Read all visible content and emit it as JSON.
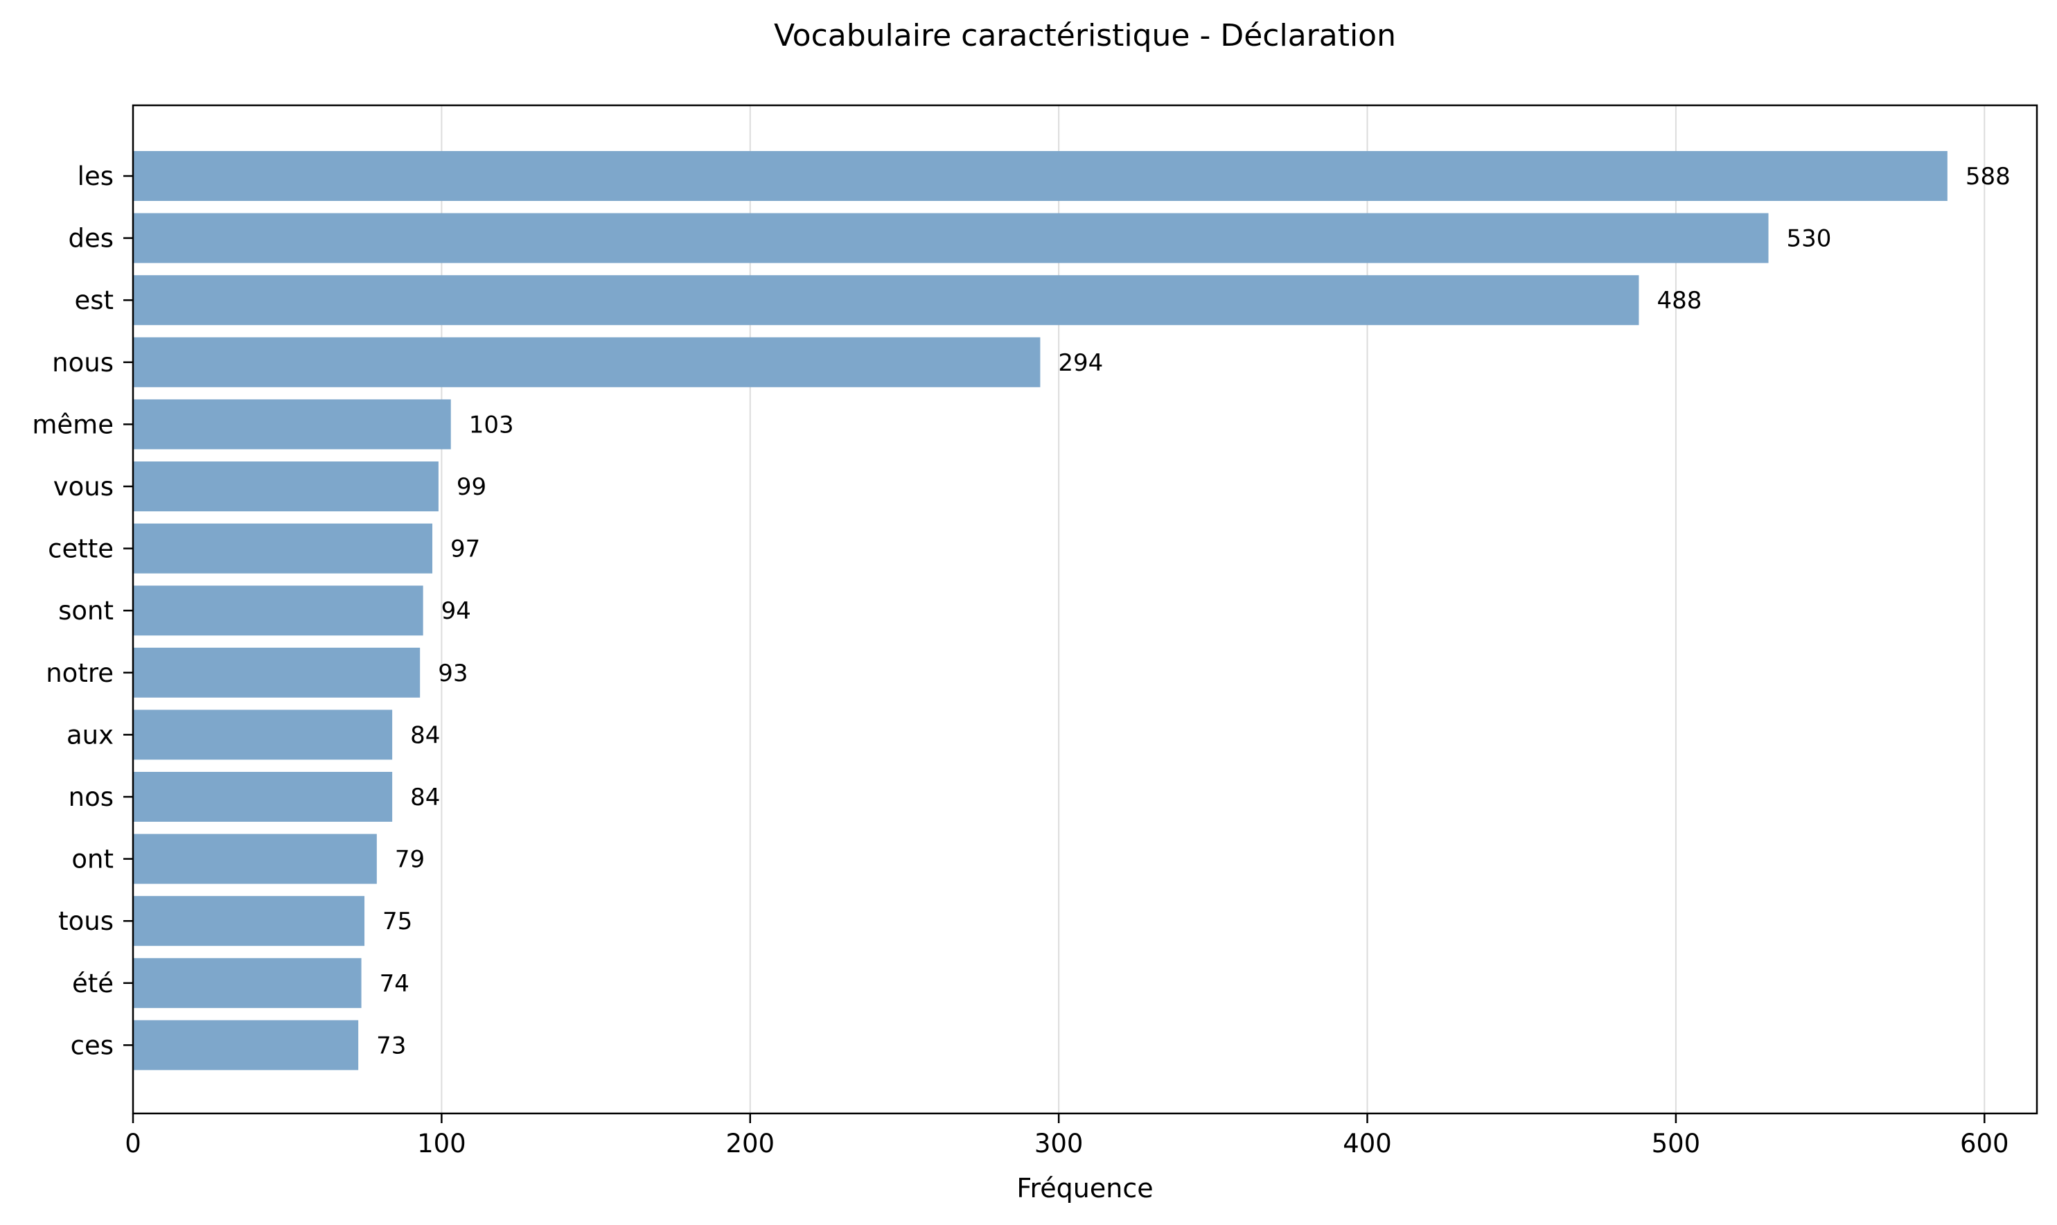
{
  "chart_data": {
    "type": "bar",
    "orientation": "horizontal",
    "title": "Vocabulaire caractéristique - Déclaration",
    "xlabel": "Fréquence",
    "ylabel": "",
    "xlim": [
      0,
      617
    ],
    "xticks": [
      0,
      100,
      200,
      300,
      400,
      500,
      600
    ],
    "grid": "vertical",
    "legend": "none",
    "bar_color": "#7ea7cb",
    "categories": [
      "les",
      "des",
      "est",
      "nous",
      "même",
      "vous",
      "cette",
      "sont",
      "notre",
      "aux",
      "nos",
      "ont",
      "tous",
      "été",
      "ces"
    ],
    "values": [
      588,
      530,
      488,
      294,
      103,
      99,
      97,
      94,
      93,
      84,
      84,
      79,
      75,
      74,
      73
    ],
    "data_labels": [
      "588",
      "530",
      "488",
      "294",
      "103",
      "99",
      "97",
      "94",
      "93",
      "84",
      "84",
      "79",
      "75",
      "74",
      "73"
    ]
  }
}
